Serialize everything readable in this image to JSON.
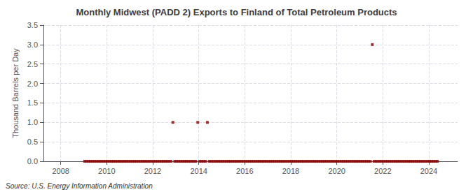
{
  "chart_data": {
    "type": "scatter",
    "title": "Monthly Midwest (PADD 2) Exports to Finland of Total Petroleum Products",
    "ylabel": "Thousand Barrels per Day",
    "source": "Source: U.S. Energy Information Administration",
    "color": "#8b0000",
    "marker": "square",
    "grid": true,
    "xlim": [
      2007.25,
      2025.25
    ],
    "xticks": [
      2008,
      2010,
      2012,
      2014,
      2016,
      2018,
      2020,
      2022,
      2024
    ],
    "ylim": [
      0.0,
      3.5
    ],
    "yticks": [
      {
        "value": 0.0,
        "label": "0.0"
      },
      0.5,
      {
        "value": 1.0,
        "label": "1.0"
      },
      1.5,
      {
        "value": 2.0,
        "label": "2.0"
      },
      2.5,
      {
        "value": 3.0,
        "label": "3.0"
      },
      3.5
    ],
    "x": [
      2009.0416666667,
      2009.125,
      2009.2083333333,
      2009.2916666667,
      2009.375,
      2009.4583333333,
      2009.5416666667,
      2009.625,
      2009.7083333333,
      2009.7916666667,
      2009.875,
      2009.9583333333,
      2010.0416666667,
      2010.125,
      2010.2083333333,
      2010.2916666667,
      2010.375,
      2010.4583333333,
      2010.5416666667,
      2010.625,
      2010.7083333333,
      2010.7916666667,
      2010.875,
      2010.9583333333,
      2011.0416666667,
      2011.125,
      2011.2083333333,
      2011.2916666667,
      2011.375,
      2011.4583333333,
      2011.5416666667,
      2011.625,
      2011.7083333333,
      2011.7916666667,
      2011.875,
      2011.9583333333,
      2012.0416666667,
      2012.125,
      2012.2083333333,
      2012.2916666667,
      2012.375,
      2012.4583333333,
      2012.5416666667,
      2012.625,
      2012.7083333333,
      2012.7916666667,
      2012.875,
      2012.9583333333,
      2013.0416666667,
      2013.125,
      2013.2083333333,
      2013.2916666667,
      2013.375,
      2013.4583333333,
      2013.5416666667,
      2013.625,
      2013.7083333333,
      2013.7916666667,
      2013.875,
      2013.9583333333,
      2014.0416666667,
      2014.125,
      2014.2083333333,
      2014.2916666667,
      2014.375,
      2014.4583333333,
      2014.5416666667,
      2014.625,
      2014.7083333333,
      2014.7916666667,
      2014.875,
      2014.9583333333,
      2015.0416666667,
      2015.125,
      2015.2083333333,
      2015.2916666667,
      2015.375,
      2015.4583333333,
      2015.5416666667,
      2015.625,
      2015.7083333333,
      2015.7916666667,
      2015.875,
      2015.9583333333,
      2016.0416666667,
      2016.125,
      2016.2083333333,
      2016.2916666667,
      2016.375,
      2016.4583333333,
      2016.5416666667,
      2016.625,
      2016.7083333333,
      2016.7916666667,
      2016.875,
      2016.9583333333,
      2017.0416666667,
      2017.125,
      2017.2083333333,
      2017.2916666667,
      2017.375,
      2017.4583333333,
      2017.5416666667,
      2017.625,
      2017.7083333333,
      2017.7916666667,
      2017.875,
      2017.9583333333,
      2018.0416666667,
      2018.125,
      2018.2083333333,
      2018.2916666667,
      2018.375,
      2018.4583333333,
      2018.5416666667,
      2018.625,
      2018.7083333333,
      2018.7916666667,
      2018.875,
      2018.9583333333,
      2019.0416666667,
      2019.125,
      2019.2083333333,
      2019.2916666667,
      2019.375,
      2019.4583333333,
      2019.5416666667,
      2019.625,
      2019.7083333333,
      2019.7916666667,
      2019.875,
      2019.9583333333,
      2020.0416666667,
      2020.125,
      2020.2083333333,
      2020.2916666667,
      2020.375,
      2020.4583333333,
      2020.5416666667,
      2020.625,
      2020.7083333333,
      2020.7916666667,
      2020.875,
      2020.9583333333,
      2021.0416666667,
      2021.125,
      2021.2083333333,
      2021.2916666667,
      2021.375,
      2021.4583333333,
      2021.5416666667,
      2021.625,
      2021.7083333333,
      2021.7916666667,
      2021.875,
      2021.9583333333,
      2022.0416666667,
      2022.125,
      2022.2083333333,
      2022.2916666667,
      2022.375,
      2022.4583333333,
      2022.5416666667,
      2022.625,
      2022.7083333333,
      2022.7916666667,
      2022.875,
      2022.9583333333,
      2023.0416666667,
      2023.125,
      2023.2083333333,
      2023.2916666667,
      2023.375,
      2023.4583333333,
      2023.5416666667,
      2023.625,
      2023.7083333333,
      2023.7916666667,
      2023.875,
      2023.9583333333,
      2024.0416666667,
      2024.125,
      2024.2083333333,
      2024.2916666667,
      2024.375
    ],
    "values": [
      0.0,
      0.0,
      0.0,
      0.0,
      0.0,
      0.0,
      0.0,
      0.0,
      0.0,
      0.0,
      0.0,
      0.0,
      0.0,
      0.0,
      0.0,
      0.0,
      0.0,
      0.0,
      0.0,
      0.0,
      0.0,
      0.0,
      0.0,
      0.0,
      0.0,
      0.0,
      0.0,
      0.0,
      0.0,
      0.0,
      0.0,
      0.0,
      0.0,
      0.0,
      0.0,
      0.0,
      0.0,
      0.0,
      0.0,
      0.0,
      0.0,
      0.0,
      0.0,
      0.0,
      0.0,
      0.0,
      1.0,
      0.0,
      0.0,
      0.0,
      0.0,
      0.0,
      0.0,
      0.0,
      0.0,
      0.0,
      0.0,
      0.0,
      0.0,
      1.0,
      0.0,
      0.0,
      0.0,
      0.0,
      1.0,
      0.0,
      0.0,
      0.0,
      0.0,
      0.0,
      0.0,
      0.0,
      0.0,
      0.0,
      0.0,
      0.0,
      0.0,
      0.0,
      0.0,
      0.0,
      0.0,
      0.0,
      0.0,
      0.0,
      0.0,
      0.0,
      0.0,
      0.0,
      0.0,
      0.0,
      0.0,
      0.0,
      0.0,
      0.0,
      0.0,
      0.0,
      0.0,
      0.0,
      0.0,
      0.0,
      0.0,
      0.0,
      0.0,
      0.0,
      0.0,
      0.0,
      0.0,
      0.0,
      0.0,
      0.0,
      0.0,
      0.0,
      0.0,
      0.0,
      0.0,
      0.0,
      0.0,
      0.0,
      0.0,
      0.0,
      0.0,
      0.0,
      0.0,
      0.0,
      0.0,
      0.0,
      0.0,
      0.0,
      0.0,
      0.0,
      0.0,
      0.0,
      0.0,
      0.0,
      0.0,
      0.0,
      0.0,
      0.0,
      0.0,
      0.0,
      0.0,
      0.0,
      0.0,
      0.0,
      0.0,
      0.0,
      0.0,
      0.0,
      0.0,
      0.0,
      3.0,
      0.0,
      0.0,
      0.0,
      0.0,
      0.0,
      0.0,
      0.0,
      0.0,
      0.0,
      0.0,
      0.0,
      0.0,
      0.0,
      0.0,
      0.0,
      0.0,
      0.0,
      0.0,
      0.0,
      0.0,
      0.0,
      0.0,
      0.0,
      0.0,
      0.0,
      0.0,
      0.0,
      0.0,
      0.0,
      0.0,
      0.0,
      0.0,
      0.0,
      0.0
    ]
  }
}
